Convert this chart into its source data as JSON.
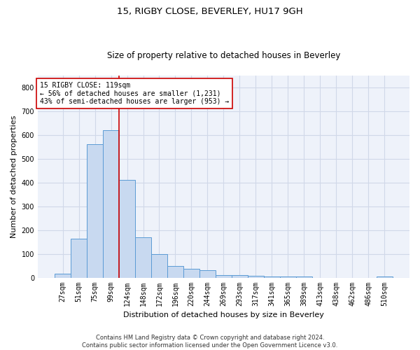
{
  "title1": "15, RIGBY CLOSE, BEVERLEY, HU17 9GH",
  "title2": "Size of property relative to detached houses in Beverley",
  "xlabel": "Distribution of detached houses by size in Beverley",
  "ylabel": "Number of detached properties",
  "footer_line1": "Contains HM Land Registry data © Crown copyright and database right 2024.",
  "footer_line2": "Contains public sector information licensed under the Open Government Licence v3.0.",
  "categories": [
    "27sqm",
    "51sqm",
    "75sqm",
    "99sqm",
    "124sqm",
    "148sqm",
    "172sqm",
    "196sqm",
    "220sqm",
    "244sqm",
    "269sqm",
    "293sqm",
    "317sqm",
    "341sqm",
    "365sqm",
    "389sqm",
    "413sqm",
    "438sqm",
    "462sqm",
    "486sqm",
    "510sqm"
  ],
  "values": [
    15,
    165,
    560,
    620,
    410,
    170,
    100,
    50,
    38,
    30,
    11,
    10,
    7,
    4,
    4,
    5,
    0,
    0,
    0,
    0,
    5
  ],
  "bar_color": "#c8d9f0",
  "bar_edge_color": "#5b9bd5",
  "property_line_label": "15 RIGBY CLOSE: 119sqm",
  "annotation_line1": "← 56% of detached houses are smaller (1,231)",
  "annotation_line2": "43% of semi-detached houses are larger (953) →",
  "vline_color": "#cc0000",
  "vline_x": 3.5,
  "ylim": [
    0,
    850
  ],
  "yticks": [
    0,
    100,
    200,
    300,
    400,
    500,
    600,
    700,
    800
  ],
  "grid_color": "#d0d8e8",
  "bg_color": "#eef2fa",
  "title1_fontsize": 9.5,
  "title2_fontsize": 8.5,
  "xlabel_fontsize": 8,
  "ylabel_fontsize": 8,
  "tick_fontsize": 7,
  "annot_fontsize": 7,
  "footer_fontsize": 6
}
